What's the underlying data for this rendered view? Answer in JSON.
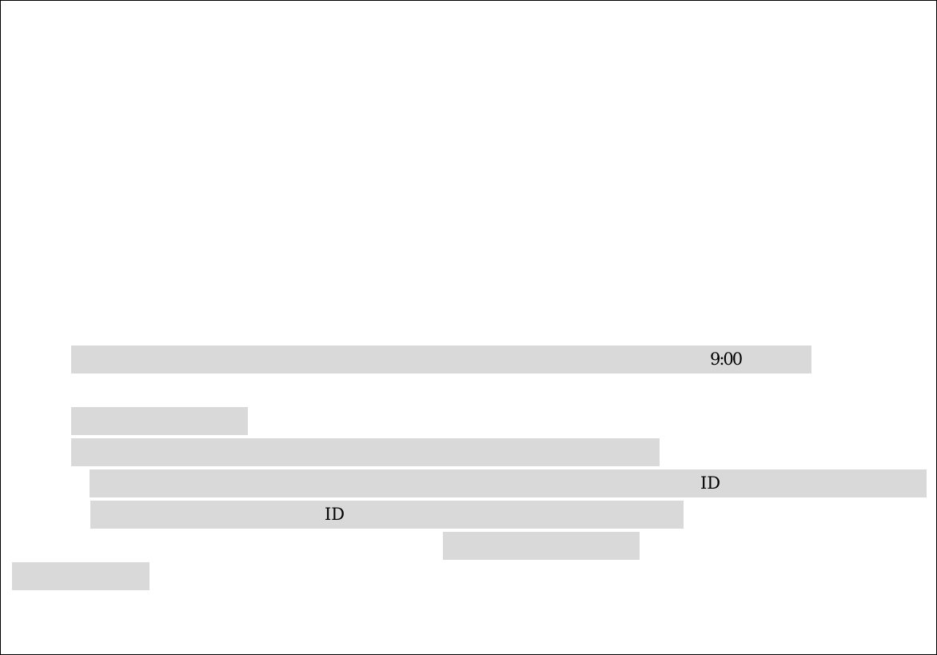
{
  "document": {
    "line1": {
      "time_text": "9:00"
    },
    "line2": {
      "text": ""
    },
    "line3": {
      "text": ""
    },
    "line4": {
      "id_label": "ID"
    },
    "line5": {
      "id_label": "ID"
    },
    "line6": {
      "text": ""
    },
    "line7": {
      "text": ""
    }
  },
  "colors": {
    "redaction_fill": "#d9d9d9",
    "border": "#000000",
    "background": "#ffffff"
  }
}
